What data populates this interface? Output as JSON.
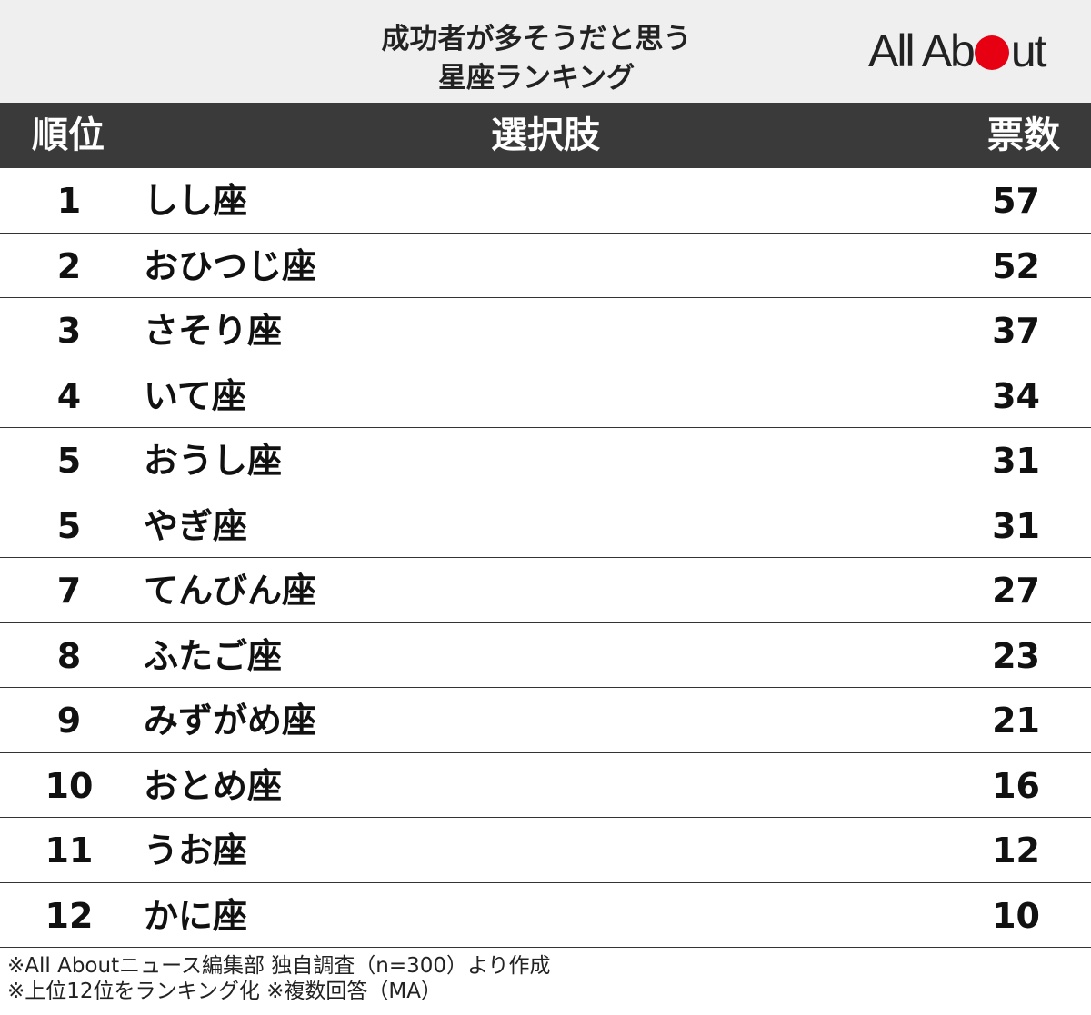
{
  "header": {
    "title_line1": "成功者が多そうだと思う",
    "title_line2": "星座ランキング",
    "logo_text_left": "All Ab",
    "logo_text_right": "ut",
    "logo_dot_color": "#e60012"
  },
  "columns": {
    "rank": "順位",
    "choice": "選択肢",
    "votes": "票数"
  },
  "chart_data": {
    "type": "table",
    "title": "成功者が多そうだと思う 星座ランキング",
    "columns": [
      "順位",
      "選択肢",
      "票数"
    ],
    "rows": [
      {
        "rank": "1",
        "choice": "しし座",
        "votes": "57"
      },
      {
        "rank": "2",
        "choice": "おひつじ座",
        "votes": "52"
      },
      {
        "rank": "3",
        "choice": "さそり座",
        "votes": "37"
      },
      {
        "rank": "4",
        "choice": "いて座",
        "votes": "34"
      },
      {
        "rank": "5",
        "choice": "おうし座",
        "votes": "31"
      },
      {
        "rank": "5",
        "choice": "やぎ座",
        "votes": "31"
      },
      {
        "rank": "7",
        "choice": "てんびん座",
        "votes": "27"
      },
      {
        "rank": "8",
        "choice": "ふたご座",
        "votes": "23"
      },
      {
        "rank": "9",
        "choice": "みずがめ座",
        "votes": "21"
      },
      {
        "rank": "10",
        "choice": "おとめ座",
        "votes": "16"
      },
      {
        "rank": "11",
        "choice": "うお座",
        "votes": "12"
      },
      {
        "rank": "12",
        "choice": "かに座",
        "votes": "10"
      }
    ]
  },
  "notes": {
    "line1": "※All Aboutニュース編集部 独自調査（n=300）より作成",
    "line2": "※上位12位をランキング化 ※複数回答（MA）"
  }
}
